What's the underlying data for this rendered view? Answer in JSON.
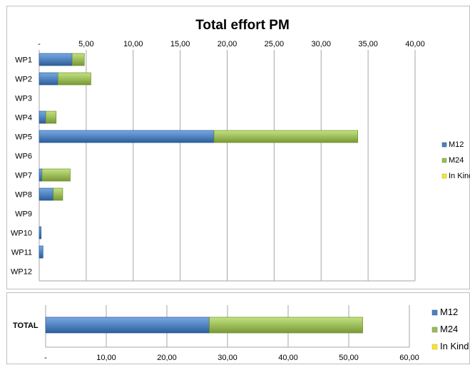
{
  "chart_data": [
    {
      "type": "bar",
      "orientation": "horizontal",
      "stacked": true,
      "title": "Total effort PM",
      "categories": [
        "WP1",
        "WP2",
        "WP3",
        "WP4",
        "WP5",
        "WP6",
        "WP7",
        "WP8",
        "WP9",
        "WP10",
        "WP11",
        "WP12"
      ],
      "series": [
        {
          "name": "M12",
          "color": "#4f81bd",
          "values": [
            3.5,
            2.0,
            0,
            0.7,
            18.6,
            0,
            0.3,
            1.5,
            0,
            0.2,
            0.4,
            0
          ]
        },
        {
          "name": "M24",
          "color": "#9bbb59",
          "values": [
            1.3,
            3.5,
            0,
            1.1,
            15.3,
            0,
            3.0,
            1.0,
            0,
            0,
            0,
            0
          ]
        },
        {
          "name": "In Kind",
          "color": "#f2e33b",
          "values": [
            0,
            0,
            0,
            0,
            0,
            0,
            0,
            0,
            0,
            0,
            0,
            0
          ]
        }
      ],
      "xlim": [
        0,
        40
      ],
      "xticks": [
        "-",
        "5,00",
        "10,00",
        "15,00",
        "20,00",
        "25,00",
        "30,00",
        "35,00",
        "40,00"
      ],
      "xaxis_position": "top",
      "grid": true,
      "legend_placement": "right"
    },
    {
      "type": "bar",
      "orientation": "horizontal",
      "stacked": true,
      "title": "",
      "categories": [
        "TOTAL"
      ],
      "series": [
        {
          "name": "M12",
          "color": "#4f81bd",
          "values": [
            27.0
          ]
        },
        {
          "name": "M24",
          "color": "#9bbb59",
          "values": [
            25.3
          ]
        },
        {
          "name": "In Kind",
          "color": "#f2e33b",
          "values": [
            0
          ]
        }
      ],
      "xlim": [
        0,
        60
      ],
      "xticks": [
        "-",
        "10,00",
        "20,00",
        "30,00",
        "40,00",
        "50,00",
        "60,00"
      ],
      "xaxis_position": "bottom",
      "grid": true,
      "legend_placement": "right"
    }
  ]
}
